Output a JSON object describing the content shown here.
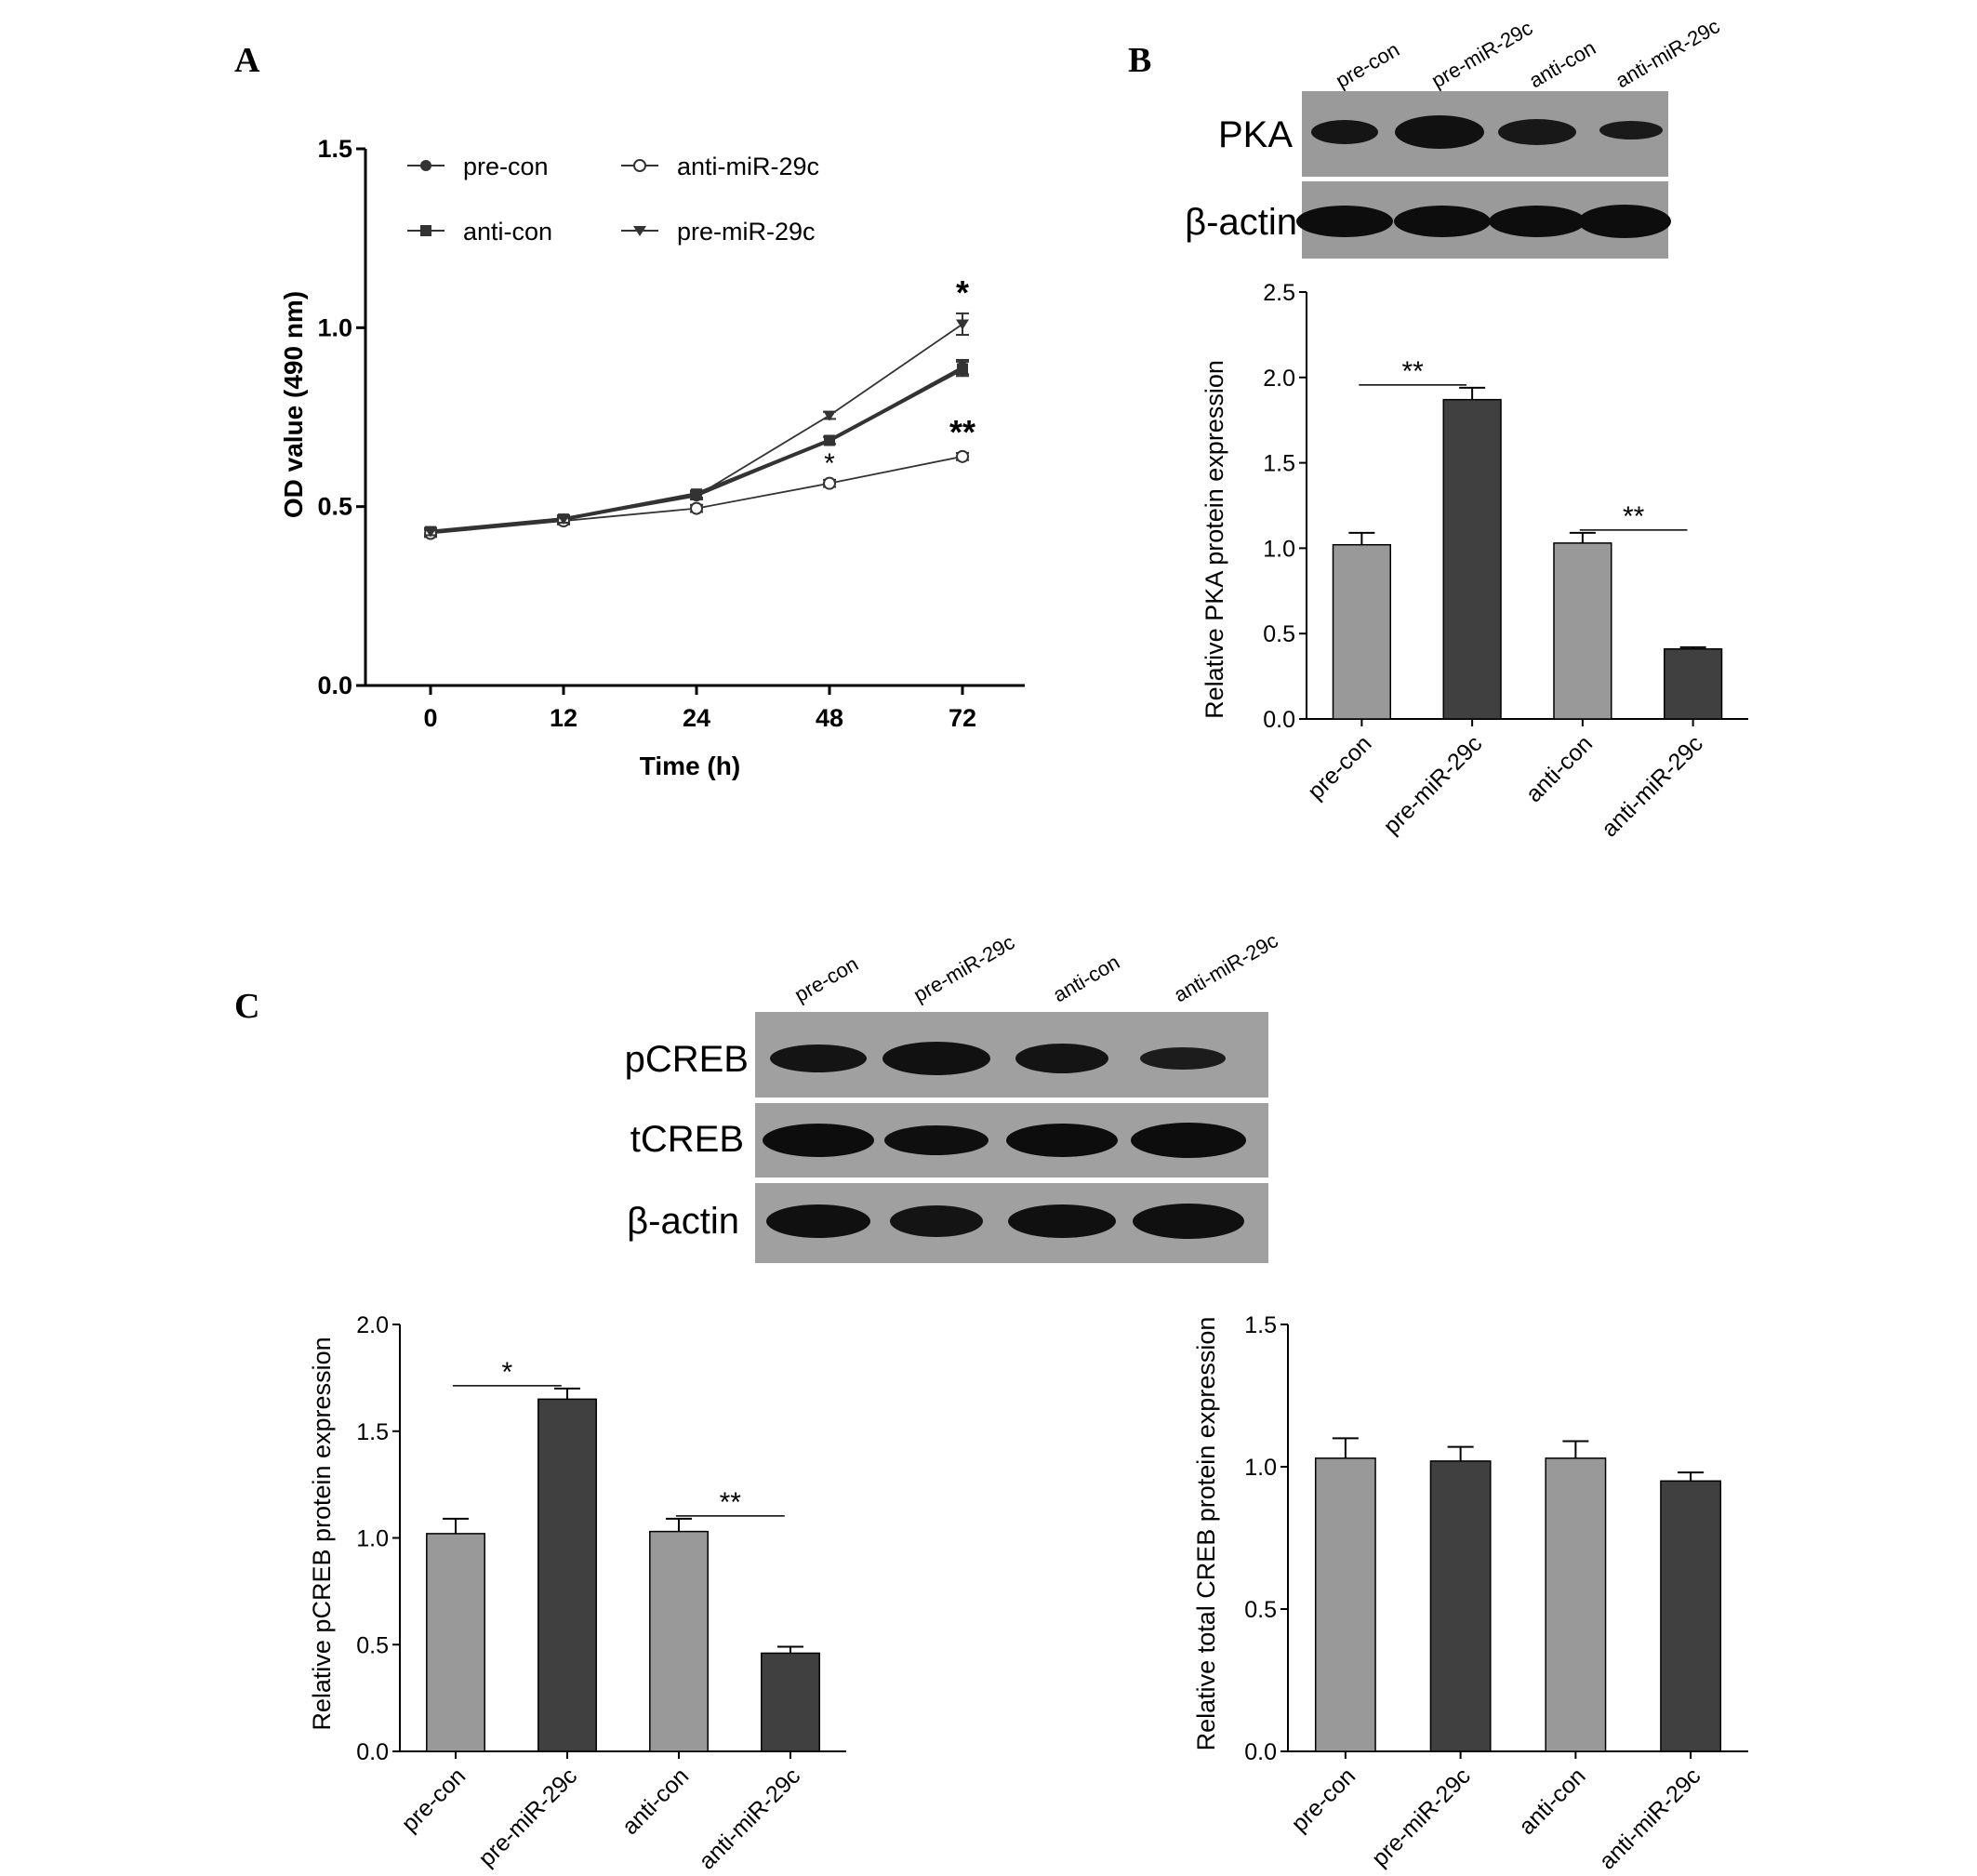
{
  "panels": {
    "a": "A",
    "b": "B",
    "c": "C"
  },
  "colors": {
    "light_bar": "#999999",
    "dark_bar": "#404040",
    "line": "#333333"
  },
  "western_blot_b": {
    "lanes": [
      "pre-con",
      "pre-miR-29c",
      "anti-con",
      "anti-miR-29c"
    ],
    "bands": [
      "PKA",
      "β-actin"
    ]
  },
  "western_blot_c": {
    "lanes": [
      "pre-con",
      "pre-miR-29c",
      "anti-con",
      "anti-miR-29c"
    ],
    "bands": [
      "pCREB",
      "tCREB",
      "β-actin"
    ]
  },
  "chart_data": [
    {
      "type": "line",
      "panel": "A",
      "xlabel": "Time (h)",
      "ylabel": "OD value (490 nm)",
      "categories": [
        "0",
        "12",
        "24",
        "48",
        "72"
      ],
      "ylim": [
        0,
        1.5
      ],
      "yticks": [
        "0.0",
        "0.5",
        "1.0",
        "1.5"
      ],
      "legend_placement": "top-left, two columns",
      "series": [
        {
          "name": "pre-con",
          "marker": "filled-circle",
          "values": [
            0.43,
            0.465,
            0.53,
            0.685,
            0.89
          ],
          "errors": [
            0.01,
            0.01,
            0.01,
            0.01,
            0.02
          ]
        },
        {
          "name": "anti-con",
          "marker": "filled-square",
          "values": [
            0.43,
            0.465,
            0.535,
            0.685,
            0.885
          ],
          "errors": [
            0.01,
            0.01,
            0.01,
            0.01,
            0.02
          ]
        },
        {
          "name": "anti-miR-29c",
          "marker": "open-circle",
          "values": [
            0.425,
            0.46,
            0.495,
            0.565,
            0.64
          ],
          "errors": [
            0.01,
            0.01,
            0.01,
            0.01,
            0.01
          ]
        },
        {
          "name": "pre-miR-29c",
          "marker": "filled-triangle-down",
          "values": [
            0.43,
            0.465,
            0.53,
            0.755,
            1.01
          ],
          "errors": [
            0.01,
            0.01,
            0.01,
            0.01,
            0.03
          ]
        }
      ],
      "annotations": [
        {
          "text": "*",
          "x": "72",
          "series": "pre-miR-29c"
        },
        {
          "text": "**",
          "x": "72",
          "series": "anti-miR-29c"
        },
        {
          "text": "*",
          "x": "48",
          "series": "anti-miR-29c"
        }
      ]
    },
    {
      "type": "bar",
      "panel": "B",
      "ylabel": "Relative PKA protein expression",
      "categories": [
        "pre-con",
        "pre-miR-29c",
        "anti-con",
        "anti-miR-29c"
      ],
      "values": [
        1.02,
        1.87,
        1.03,
        0.41
      ],
      "errors": [
        0.07,
        0.07,
        0.06,
        0.01
      ],
      "bar_colors": [
        "#999999",
        "#404040",
        "#999999",
        "#404040"
      ],
      "ylim": [
        0,
        2.5
      ],
      "yticks": [
        "0.0",
        "0.5",
        "1.0",
        "1.5",
        "2.0",
        "2.5"
      ],
      "significance": [
        {
          "from": 0,
          "to": 1,
          "label": "**"
        },
        {
          "from": 2,
          "to": 3,
          "label": "**"
        }
      ]
    },
    {
      "type": "bar",
      "panel": "C",
      "ylabel": "Relative pCREB protein expression",
      "categories": [
        "pre-con",
        "pre-miR-29c",
        "anti-con",
        "anti-miR-29c"
      ],
      "values": [
        1.02,
        1.65,
        1.03,
        0.46
      ],
      "errors": [
        0.07,
        0.05,
        0.06,
        0.03
      ],
      "bar_colors": [
        "#999999",
        "#404040",
        "#999999",
        "#404040"
      ],
      "ylim": [
        0,
        2.0
      ],
      "yticks": [
        "0.0",
        "0.5",
        "1.0",
        "1.5",
        "2.0"
      ],
      "significance": [
        {
          "from": 0,
          "to": 1,
          "label": "*"
        },
        {
          "from": 2,
          "to": 3,
          "label": "**"
        }
      ]
    },
    {
      "type": "bar",
      "panel": "C",
      "ylabel": "Relative total CREB protein expression",
      "categories": [
        "pre-con",
        "pre-miR-29c",
        "anti-con",
        "anti-miR-29c"
      ],
      "values": [
        1.03,
        1.02,
        1.03,
        0.95
      ],
      "errors": [
        0.07,
        0.05,
        0.06,
        0.03
      ],
      "bar_colors": [
        "#999999",
        "#404040",
        "#999999",
        "#404040"
      ],
      "ylim": [
        0,
        1.5
      ],
      "yticks": [
        "0.0",
        "0.5",
        "1.0",
        "1.5"
      ],
      "significance": []
    }
  ]
}
